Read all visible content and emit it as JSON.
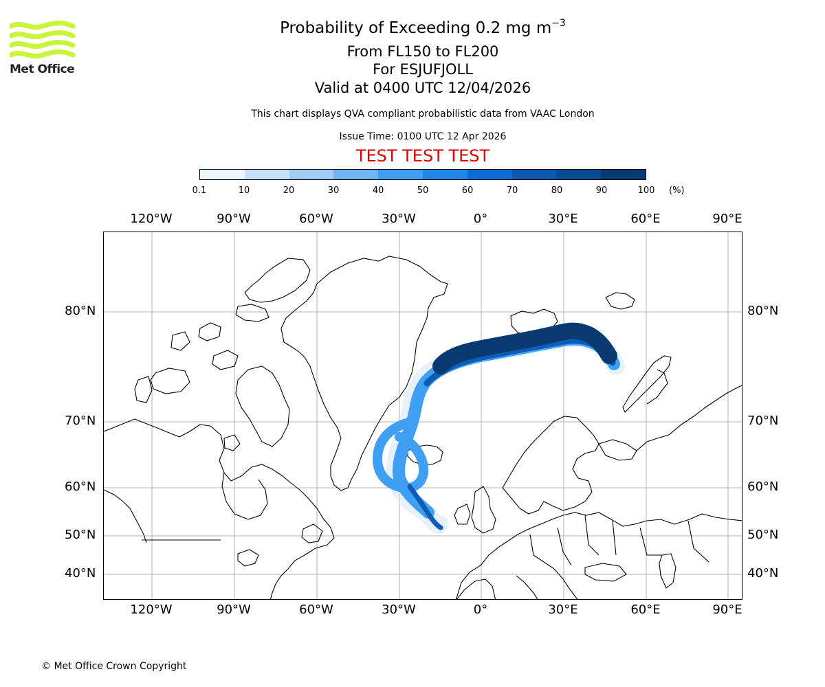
{
  "logo": {
    "text": "Met Office",
    "brand_color": "#c8f53a"
  },
  "title": {
    "prefix": "Probability of Exceeding 0.2 mg m",
    "superscript": "−3",
    "flight_levels": "From FL150 to FL200",
    "volcano": "For ESJUFJOLL",
    "valid": "Valid at 0400 UTC 12/04/2026"
  },
  "description": "This chart displays QVA compliant probabilistic data from VAAC London",
  "issue_time": "Issue Time: 0100 UTC 12 Apr 2026",
  "test_banner": "TEST TEST TEST",
  "test_color": "#e00000",
  "colorbar": {
    "ticks": [
      "0.1",
      "10",
      "20",
      "30",
      "40",
      "50",
      "60",
      "70",
      "80",
      "90",
      "100"
    ],
    "unit": "(%)",
    "colors": [
      "#ebf5fd",
      "#c5e1f9",
      "#9fcdf6",
      "#6fb6f5",
      "#3f9ff2",
      "#1f87e8",
      "#0d6dd6",
      "#0959b4",
      "#074b92",
      "#073a70"
    ]
  },
  "map": {
    "lon_labels": [
      "120°W",
      "90°W",
      "60°W",
      "30°W",
      "0°",
      "30°E",
      "60°E",
      "90°E"
    ],
    "lat_labels": [
      "80°N",
      "70°N",
      "60°N",
      "50°N",
      "40°N"
    ],
    "plume_colors": {
      "low": "#cfe6fb",
      "mid": "#3f9ff2",
      "high": "#0d5db8",
      "max": "#0a3b70"
    }
  },
  "copyright": "© Met Office Crown Copyright"
}
